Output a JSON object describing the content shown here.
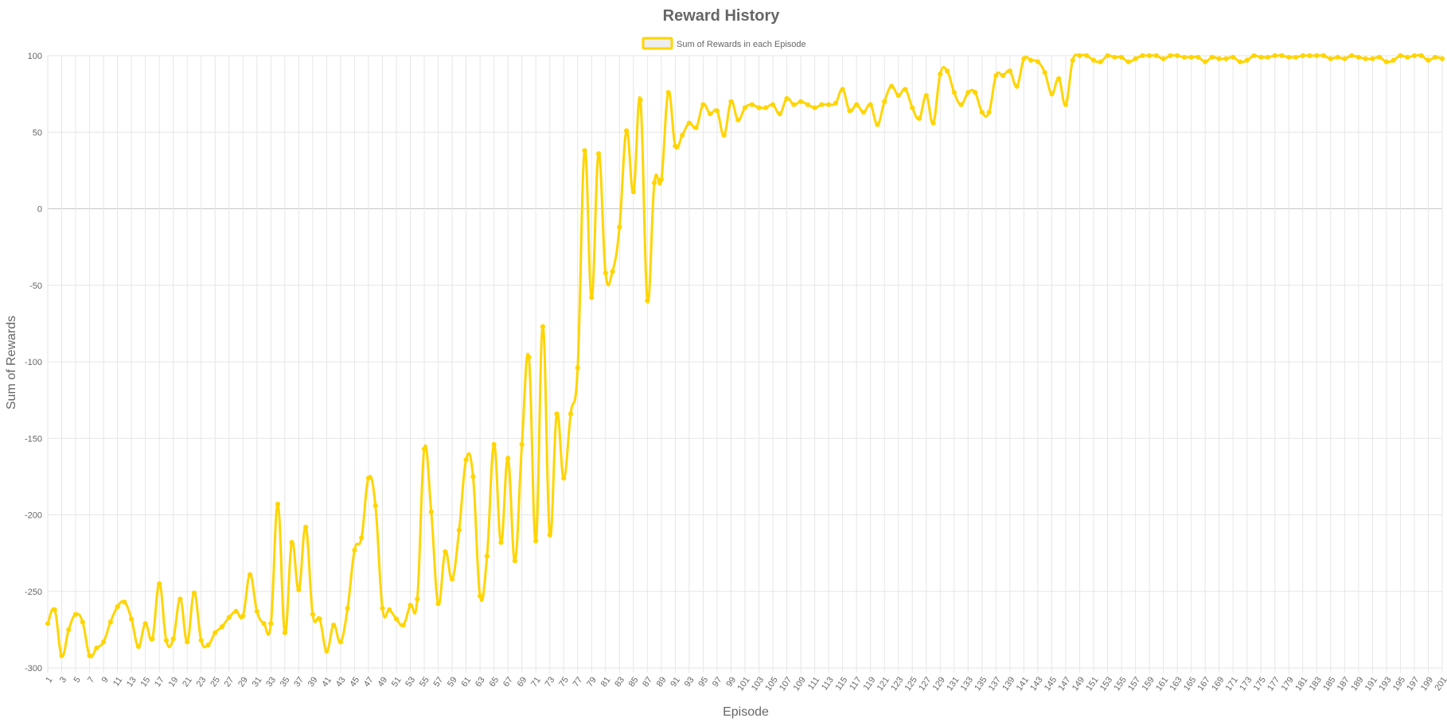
{
  "colors": {
    "series": "#FFD500",
    "grid": "#e6e6e6",
    "zero_line": "#c8c8c8",
    "text": "#666666",
    "legend_fill": "#eeeeee"
  },
  "chart_data": {
    "type": "line",
    "title": "Reward History",
    "xlabel": "Episode",
    "ylabel": "Sum of Rewards",
    "ylim": [
      -300,
      100
    ],
    "yticks": [
      100,
      50,
      0,
      -50,
      -100,
      -150,
      -200,
      -250,
      -300
    ],
    "xlim": [
      1,
      200
    ],
    "grid": true,
    "legend_position": "top-center",
    "series": [
      {
        "name": "Sum of Rewards in each Episode",
        "values": [
          -271,
          -262,
          -292,
          -275,
          -265,
          -270,
          -292,
          -287,
          -283,
          -270,
          -260,
          -257,
          -268,
          -286,
          -271,
          -281,
          -245,
          -282,
          -281,
          -255,
          -283,
          -251,
          -282,
          -285,
          -277,
          -273,
          -267,
          -263,
          -266,
          -239,
          -263,
          -271,
          -271,
          -193,
          -277,
          -218,
          -249,
          -208,
          -265,
          -268,
          -289,
          -272,
          -283,
          -261,
          -223,
          -215,
          -176,
          -194,
          -261,
          -262,
          -268,
          -272,
          -259,
          -255,
          -157,
          -198,
          -258,
          -224,
          -242,
          -210,
          -164,
          -175,
          -253,
          -227,
          -154,
          -218,
          -163,
          -230,
          -154,
          -97,
          -217,
          -77,
          -213,
          -134,
          -176,
          -134,
          -104,
          38,
          -58,
          36,
          -42,
          -41,
          -12,
          51,
          11,
          71,
          -60,
          17,
          19,
          76,
          41,
          48,
          56,
          53,
          68,
          62,
          64,
          48,
          70,
          58,
          66,
          68,
          66,
          66,
          68,
          62,
          72,
          68,
          70,
          68,
          66,
          68,
          68,
          69,
          78,
          64,
          68,
          63,
          68,
          55,
          70,
          80,
          74,
          78,
          66,
          59,
          74,
          56,
          88,
          90,
          76,
          68,
          76,
          76,
          63,
          63,
          87,
          87,
          90,
          80,
          98,
          97,
          96,
          89,
          75,
          85,
          68,
          97,
          100,
          100,
          97,
          96,
          100,
          99,
          99,
          96,
          98,
          100,
          100,
          100,
          98,
          100,
          100,
          99,
          99,
          99,
          96,
          99,
          98,
          98,
          99,
          96,
          97,
          100,
          99,
          99,
          100,
          100,
          99,
          99,
          100,
          100,
          100,
          100,
          98,
          99,
          98,
          100,
          99,
          98,
          98,
          99,
          96,
          97,
          100,
          99,
          100,
          100,
          97,
          99,
          98
        ]
      }
    ]
  }
}
